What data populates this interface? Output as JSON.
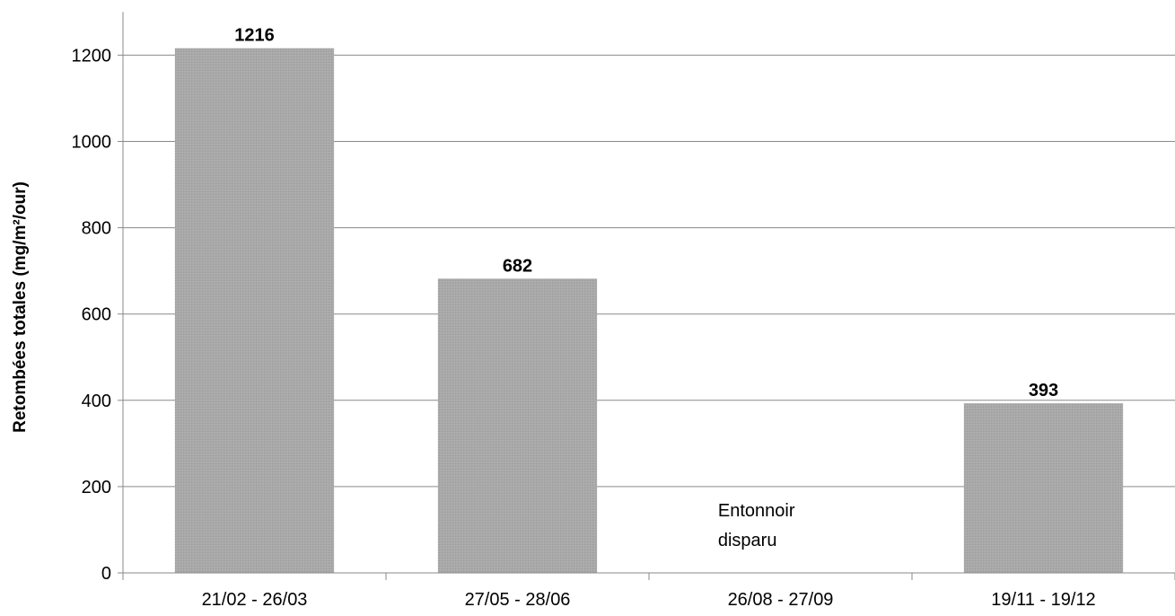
{
  "chart_data": {
    "type": "bar",
    "categories": [
      "21/02 - 26/03",
      "27/05 - 28/06",
      "26/08 - 27/09",
      "19/11 - 19/12"
    ],
    "values": [
      1216,
      682,
      null,
      393
    ],
    "value_labels": [
      "1216",
      "682",
      "",
      "393"
    ],
    "title": "",
    "xlabel": "",
    "ylabel": "Retombées totales (mg/m²/our)",
    "ylim": [
      0,
      1300
    ],
    "yticks": [
      0,
      200,
      400,
      600,
      800,
      1000,
      1200
    ],
    "grid": true,
    "legend": "none",
    "bar_color": "#a6a6a6",
    "annotations": [
      {
        "category": "26/08 - 27/09",
        "lines": [
          "Entonnoir",
          "disparu"
        ]
      }
    ]
  }
}
